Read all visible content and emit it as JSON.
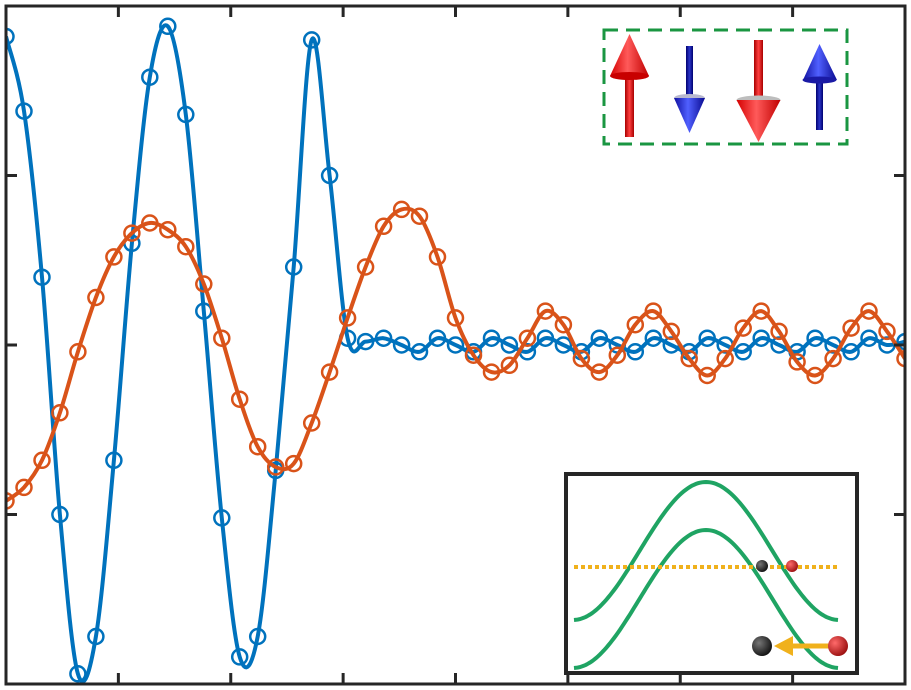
{
  "chart_data": {
    "type": "line",
    "title": "",
    "xlabel": "",
    "ylabel": "",
    "xlim": [
      0,
      80
    ],
    "ylim": [
      -1,
      1
    ],
    "grid": false,
    "legend": "none",
    "series": [
      {
        "color": "#0072BD",
        "marker": "circle-open",
        "x": [
          0,
          1.6,
          3.2,
          4.8,
          6.4,
          8,
          9.6,
          11.2,
          12.8,
          14.4,
          16,
          17.6,
          19.2,
          20.8,
          22.4,
          24,
          25.6,
          27.2,
          28.8,
          30.4,
          32,
          33.6,
          35.2,
          36.8,
          38.4,
          40,
          41.6,
          43.2,
          44.8,
          46.4,
          48,
          49.6,
          51.2,
          52.8,
          54.4,
          56,
          57.6,
          59.2,
          60.8,
          62.4,
          64,
          65.6,
          67.2,
          68.8,
          70.4,
          72,
          73.6,
          75.2,
          76.8,
          78.4,
          80
        ],
        "y": [
          0.91,
          0.69,
          0.2,
          -0.5,
          -0.97,
          -0.86,
          -0.34,
          0.3,
          0.79,
          0.94,
          0.68,
          0.1,
          -0.51,
          -0.92,
          -0.86,
          -0.37,
          0.23,
          0.9,
          0.5,
          0.02,
          0.01,
          0.02,
          0.0,
          -0.02,
          0.02,
          0.0,
          -0.02,
          0.02,
          0.0,
          -0.02,
          0.02,
          0.0,
          -0.02,
          0.02,
          0.0,
          -0.02,
          0.02,
          0.0,
          -0.02,
          0.02,
          0.0,
          -0.02,
          0.02,
          0.0,
          -0.02,
          0.02,
          0.0,
          -0.02,
          0.02,
          0.0,
          0.01
        ]
      },
      {
        "color": "#D95319",
        "marker": "circle-open",
        "x": [
          0,
          1.6,
          3.2,
          4.8,
          6.4,
          8,
          9.6,
          11.2,
          12.8,
          14.4,
          16,
          17.6,
          19.2,
          20.8,
          22.4,
          24,
          25.6,
          27.2,
          28.8,
          30.4,
          32,
          33.6,
          35.2,
          36.8,
          38.4,
          40,
          41.6,
          43.2,
          44.8,
          46.4,
          48,
          49.6,
          51.2,
          52.8,
          54.4,
          56,
          57.6,
          59.2,
          60.8,
          62.4,
          64,
          65.6,
          67.2,
          68.8,
          70.4,
          72,
          73.6,
          75.2,
          76.8,
          78.4,
          80
        ],
        "y": [
          -0.46,
          -0.42,
          -0.34,
          -0.2,
          -0.02,
          0.14,
          0.26,
          0.33,
          0.36,
          0.34,
          0.29,
          0.18,
          0.02,
          -0.16,
          -0.3,
          -0.36,
          -0.35,
          -0.23,
          -0.08,
          0.08,
          0.23,
          0.35,
          0.4,
          0.38,
          0.26,
          0.08,
          -0.03,
          -0.08,
          -0.06,
          0.02,
          0.1,
          0.06,
          -0.04,
          -0.08,
          -0.03,
          0.06,
          0.1,
          0.04,
          -0.04,
          -0.09,
          -0.04,
          0.05,
          0.1,
          0.04,
          -0.05,
          -0.09,
          -0.04,
          0.05,
          0.1,
          0.04,
          -0.04
        ]
      }
    ],
    "inset": {
      "dots": [
        "#2a2a2a",
        "#cc2222"
      ],
      "curve_color": "#1fa463",
      "line_color": "#f0b11c"
    },
    "spin_legend": {
      "border_color": "#1a9641",
      "arrows": [
        "up-red",
        "down-blue",
        "down-red",
        "up-blue"
      ]
    }
  }
}
